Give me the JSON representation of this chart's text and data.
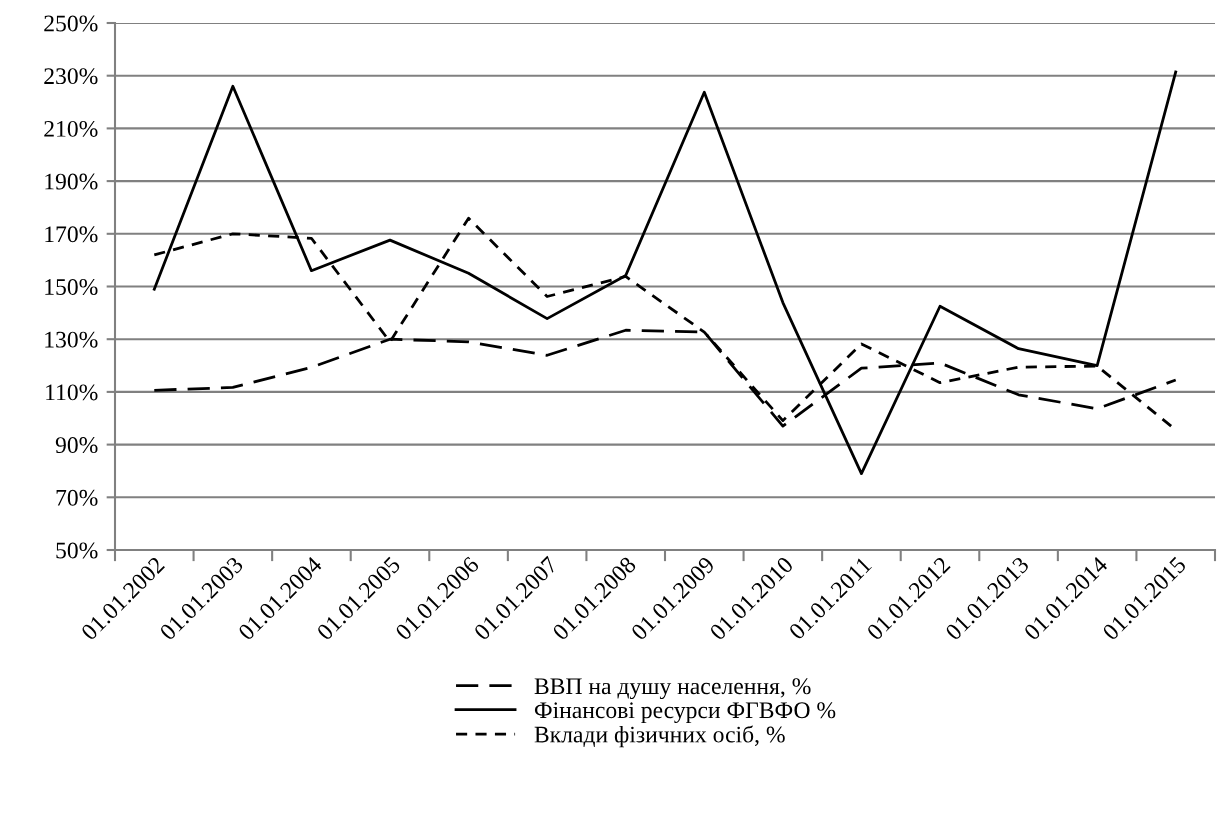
{
  "chart_data": {
    "type": "line",
    "categories": [
      "01.01.2002",
      "01.01.2003",
      "01.01.2004",
      "01.01.2005",
      "01.01.2006",
      "01.01.2007",
      "01.01.2008",
      "01.01.2009",
      "01.01.2010",
      "01.01.2011",
      "01.01.2012",
      "01.01.2013",
      "01.01.2014",
      "01.01.2015"
    ],
    "series": [
      {
        "name": "ВВП на душу населення, %",
        "color": "#000000",
        "line_style": "dashed",
        "values": [
          110.6,
          111.7,
          119.3,
          130,
          129,
          123.9,
          133.4,
          132.7,
          97,
          119,
          121,
          108.9,
          103.6,
          114.5
        ]
      },
      {
        "name": "Фінансові ресурси ФГВФО %",
        "color": "#000000",
        "line_style": "solid",
        "values": [
          149,
          226,
          156,
          167.6,
          155,
          137.8,
          154.2,
          223.7,
          143.9,
          79,
          142.5,
          126.4,
          120,
          231.4
        ]
      },
      {
        "name": "Вклади фізичних осіб, %",
        "color": "#000000",
        "line_style": "dotted",
        "values": [
          162,
          170,
          168.3,
          129,
          175.9,
          146.2,
          153.8,
          132.7,
          99.1,
          128.2,
          113.5,
          119.4,
          119.8,
          95.6
        ]
      }
    ],
    "ylim": [
      50,
      250
    ],
    "yticks": [
      {
        "value": 50,
        "label": "50%"
      },
      {
        "value": 70,
        "label": "70%"
      },
      {
        "value": 90,
        "label": "90%"
      },
      {
        "value": 110,
        "label": "110%"
      },
      {
        "value": 130,
        "label": "130%"
      },
      {
        "value": 150,
        "label": "150%"
      },
      {
        "value": 170,
        "label": "170%"
      },
      {
        "value": 190,
        "label": "190%"
      },
      {
        "value": 210,
        "label": "210%"
      },
      {
        "value": 230,
        "label": "230%"
      },
      {
        "value": 250,
        "label": "250%"
      }
    ],
    "grid": "y",
    "legend": "bottom",
    "marker": "none"
  }
}
